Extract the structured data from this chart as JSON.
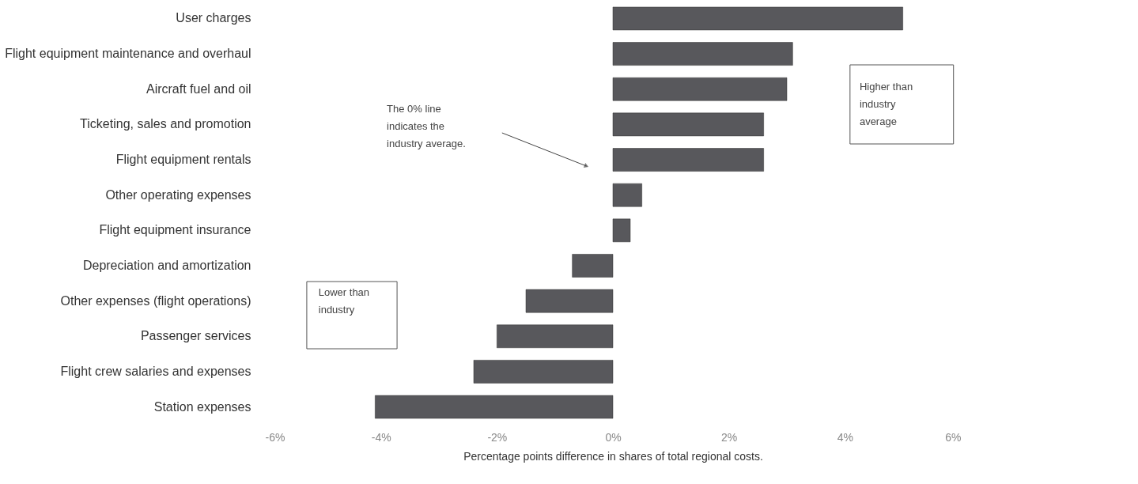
{
  "chart_data": {
    "type": "bar",
    "orientation": "horizontal",
    "categories": [
      "User charges",
      "Flight equipment maintenance and overhaul",
      "Aircraft fuel and oil",
      "Ticketing, sales and promotion",
      "Flight equipment rentals",
      "Other operating expenses",
      "Flight equipment insurance",
      "Depreciation and amortization",
      "Other expenses (flight operations)",
      "Passenger services",
      "Flight crew salaries and expenses",
      "Station expenses"
    ],
    "values": [
      5.0,
      3.1,
      3.0,
      2.6,
      2.6,
      0.5,
      0.3,
      -0.7,
      -1.5,
      -2.0,
      -2.4,
      -4.1
    ],
    "color": "#58585c",
    "xlabel": "Percentage points difference in shares of total regional costs.",
    "xlim": [
      -6,
      6
    ],
    "xticks": [
      {
        "value": -6,
        "label": "-6%"
      },
      {
        "value": -4,
        "label": "-4%"
      },
      {
        "value": -2,
        "label": "-2%"
      },
      {
        "value": 0,
        "label": "0%"
      },
      {
        "value": 2,
        "label": "2%"
      },
      {
        "value": 4,
        "label": "4%"
      },
      {
        "value": 6,
        "label": "6%"
      }
    ],
    "annotations": [
      "The 0% line indicates the industry average.",
      "Higher than industry average",
      "Lower than industry"
    ],
    "grid": false
  }
}
